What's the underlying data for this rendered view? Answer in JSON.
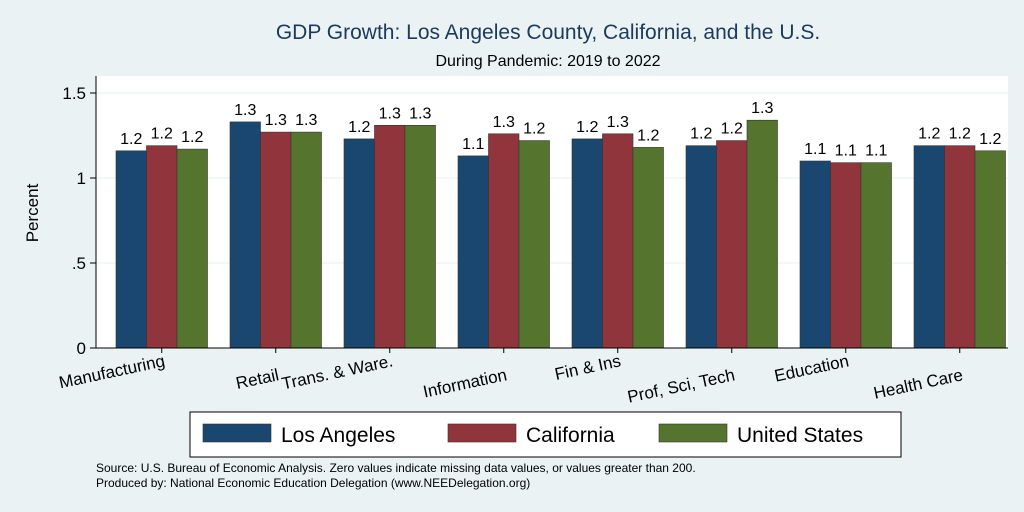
{
  "chart_data": {
    "type": "bar",
    "title": "GDP Growth: Los Angeles County, California, and the U.S.",
    "subtitle": "During Pandemic: 2019 to 2022",
    "ylabel": "Percent",
    "xlabel": "",
    "ylim": [
      0,
      1.6
    ],
    "yticks": [
      0,
      0.5,
      1,
      1.5
    ],
    "ytick_labels": [
      "0",
      ".5",
      "1",
      "1.5"
    ],
    "grid": true,
    "legend_position": "bottom",
    "categories": [
      "Manufacturing",
      "Retail",
      "Trans. & Ware.",
      "Information",
      "Fin & Ins",
      "Prof, Sci, Tech",
      "Education",
      "Health Care"
    ],
    "series": [
      {
        "name": "Los Angeles",
        "color": "#1a476f",
        "values": [
          1.16,
          1.33,
          1.23,
          1.13,
          1.23,
          1.19,
          1.1,
          1.19
        ],
        "labels": [
          "1.2",
          "1.3",
          "1.2",
          "1.1",
          "1.2",
          "1.2",
          "1.1",
          "1.2"
        ]
      },
      {
        "name": "California",
        "color": "#90353b",
        "values": [
          1.19,
          1.27,
          1.31,
          1.26,
          1.26,
          1.22,
          1.09,
          1.19
        ],
        "labels": [
          "1.2",
          "1.3",
          "1.3",
          "1.3",
          "1.3",
          "1.2",
          "1.1",
          "1.2"
        ]
      },
      {
        "name": "United States",
        "color": "#55752f",
        "values": [
          1.17,
          1.27,
          1.31,
          1.22,
          1.18,
          1.34,
          1.09,
          1.16
        ],
        "labels": [
          "1.2",
          "1.3",
          "1.3",
          "1.2",
          "1.2",
          "1.3",
          "1.1",
          "1.2"
        ]
      }
    ]
  },
  "notes": {
    "source": "Source: U.S. Bureau of Economic Analysis. Zero values indicate missing data values, or values greater than 200.",
    "produced": "Produced by: National Economic Education Delegation (www.NEEDelegation.org)"
  },
  "colors": {
    "background": "#eaf2f3",
    "plot_background": "#ffffff",
    "grid": "#eaf2f3",
    "title": "#1a3a5e"
  }
}
